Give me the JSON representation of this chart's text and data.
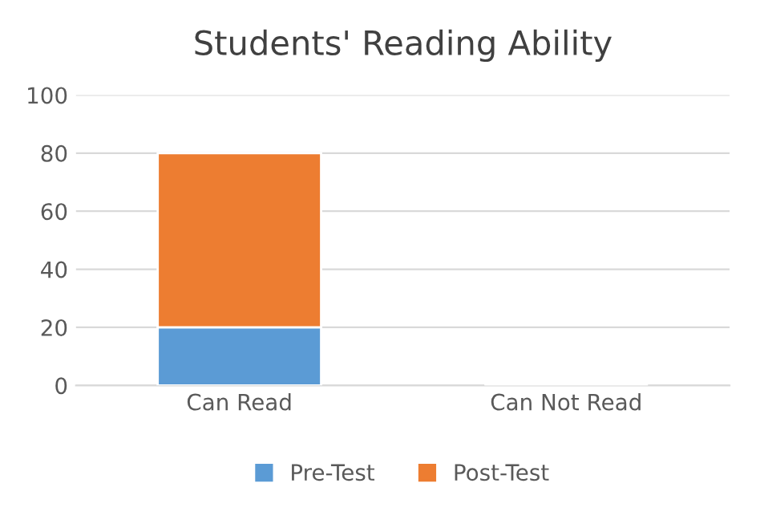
{
  "chart_data": {
    "type": "bar",
    "title": "Students' Reading Ability",
    "categories": [
      "Can Read",
      "Can Not Read"
    ],
    "stacked": true,
    "series": [
      {
        "name": "Pre-Test",
        "color": "#5b9bd5",
        "values": [
          20,
          0
        ]
      },
      {
        "name": "Post-Test",
        "color": "#ed7d31",
        "values": [
          60,
          0
        ]
      }
    ],
    "ylim": [
      0,
      100
    ],
    "yticks": [
      0,
      20,
      40,
      60,
      80,
      100
    ],
    "grid": "y",
    "legend": "bottom"
  }
}
